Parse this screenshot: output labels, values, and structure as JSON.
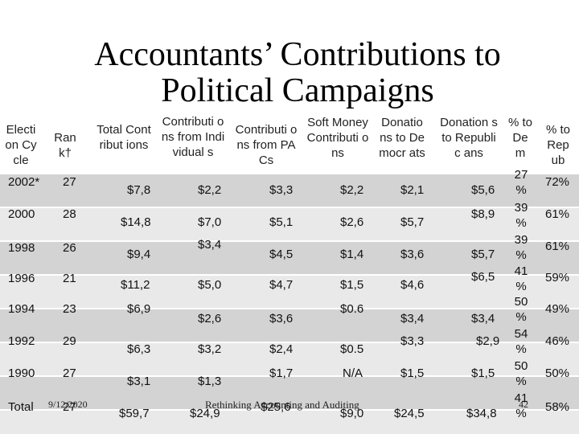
{
  "title": "Accountants’ Contributions to Political Campaigns",
  "headers": [
    "Electi on Cycle",
    "Ran k†",
    "Total Contribut ions",
    "Contributi ons from Individual s",
    "Contributi ons from PACs",
    "Soft Money Contributi ons",
    "Donatio ns to Democr ats",
    "Donation s to Republic ans",
    "% to De m",
    "% to Rep ub"
  ],
  "rows": [
    {
      "cycle": "2002*",
      "rank": "27",
      "total": "$7,8",
      "indiv": "$2,2",
      "pacs": "$3,3",
      "soft": "$2,2",
      "dem": "$2,1",
      "rep": "$5,6",
      "dem_pct": "27 %",
      "rep_pct": "72%"
    },
    {
      "cycle": "2000",
      "rank": "28",
      "total": "$14,8",
      "indiv": "$7,0",
      "pacs": "$5,1",
      "soft": "$2,6",
      "dem": "$5,7",
      "rep": "$8,9",
      "dem_pct": "39 %",
      "rep_pct": "61%"
    },
    {
      "cycle": "1998",
      "rank": "26",
      "total": "$9,4",
      "indiv": "$3,4",
      "pacs": "$4,5",
      "soft": "$1,4",
      "dem": "$3,6",
      "rep": "$5,7",
      "dem_pct": "39 %",
      "rep_pct": "61%"
    },
    {
      "cycle": "1996",
      "rank": "21",
      "total": "$11,2",
      "indiv": "$5,0",
      "pacs": "$4,7",
      "soft": "$1,5",
      "dem": "$4,6",
      "rep": "$6,5",
      "dem_pct": "41 %",
      "rep_pct": "59%"
    },
    {
      "cycle": "1994",
      "rank": "23",
      "total": "$6,9",
      "indiv": "$2,6",
      "pacs": "$3,6",
      "soft": "$0.6",
      "dem": "$3,4",
      "rep": "$3,4",
      "dem_pct": "50 %",
      "rep_pct": "49%"
    },
    {
      "cycle": "1992",
      "rank": "29",
      "total": "$6,3",
      "indiv": "$3,2",
      "pacs": "$2,4",
      "soft": "$0.5",
      "dem": "$3,3",
      "rep": "$2,9",
      "dem_pct": "54 %",
      "rep_pct": "46%"
    },
    {
      "cycle": "1990",
      "rank": "27",
      "total": "$3,1",
      "indiv": "$1,3",
      "pacs": "$1,7",
      "soft": "N/A",
      "dem": "$1,5",
      "rep": "$1,5",
      "dem_pct": "50 %",
      "rep_pct": "50%"
    },
    {
      "cycle": "Total",
      "rank": "27",
      "total": "$59,7",
      "indiv": "$24,9",
      "pacs": "$25,6",
      "soft": "$9,0",
      "dem": "$24,5",
      "rep": "$34,8",
      "dem_pct": "41 %",
      "rep_pct": "58%"
    }
  ],
  "footer": {
    "date": "9/12/2020",
    "title": "Rethinking Accounting and Auditing",
    "page": "42"
  }
}
